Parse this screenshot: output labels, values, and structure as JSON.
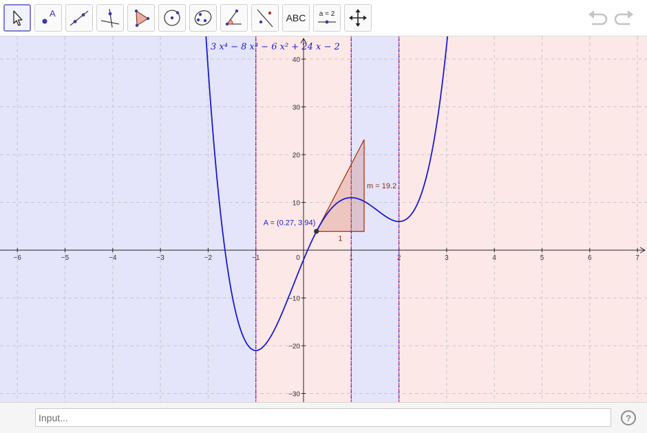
{
  "toolbar": {
    "tools": [
      {
        "name": "move-tool",
        "icon": "arrow-pointer-icon",
        "selected": true
      },
      {
        "name": "point-tool",
        "icon": "point-icon",
        "label": "A"
      },
      {
        "name": "line-tool",
        "icon": "line-through-points-icon"
      },
      {
        "name": "perpendicular-line-tool",
        "icon": "perpendicular-line-icon"
      },
      {
        "name": "polygon-tool",
        "icon": "polygon-icon"
      },
      {
        "name": "circle-tool",
        "icon": "circle-center-point-icon"
      },
      {
        "name": "conic-tool",
        "icon": "ellipse-icon"
      },
      {
        "name": "angle-tool",
        "icon": "angle-icon"
      },
      {
        "name": "reflect-tool",
        "icon": "reflect-line-icon"
      },
      {
        "name": "text-tool",
        "icon": "text-icon",
        "label": "ABC"
      },
      {
        "name": "slider-tool",
        "icon": "slider-icon",
        "label": "a = 2"
      },
      {
        "name": "move-graphics-tool",
        "icon": "move-view-icon"
      }
    ],
    "undo_icon": "undo-icon",
    "redo_icon": "redo-icon"
  },
  "graph": {
    "x_ticks": [
      -6,
      -5,
      -4,
      -3,
      -2,
      -1,
      0,
      1,
      2,
      3,
      4,
      5,
      6,
      7
    ],
    "y_ticks": [
      40,
      30,
      20,
      10,
      -10,
      -20,
      -30
    ],
    "function_coeffs": [
      3,
      -8,
      -6,
      24,
      -2
    ],
    "function_label": "3 x⁴ − 8 x³ − 6 x² + 24 x − 2",
    "point_A": {
      "x": 0.27,
      "y": 3.94,
      "label": "A = (0.27, 3.94)"
    },
    "slope_label": "m = 19.2",
    "slope_run_label": "1",
    "slope_value": 19.2,
    "vertical_lines_x": [
      -1,
      1,
      2
    ],
    "regions": [
      {
        "from": -7,
        "to": -1,
        "color": "#e4e4fb"
      },
      {
        "from": -1,
        "to": 1,
        "color": "#fde8e8"
      },
      {
        "from": 1,
        "to": 2,
        "color": "#e4e4fb"
      },
      {
        "from": 2,
        "to": 8,
        "color": "#fde8e8"
      }
    ],
    "curve_color": "#1a1acc",
    "tangent_color": "#a52a00"
  },
  "input": {
    "placeholder": "Input...",
    "help_label": "?"
  }
}
